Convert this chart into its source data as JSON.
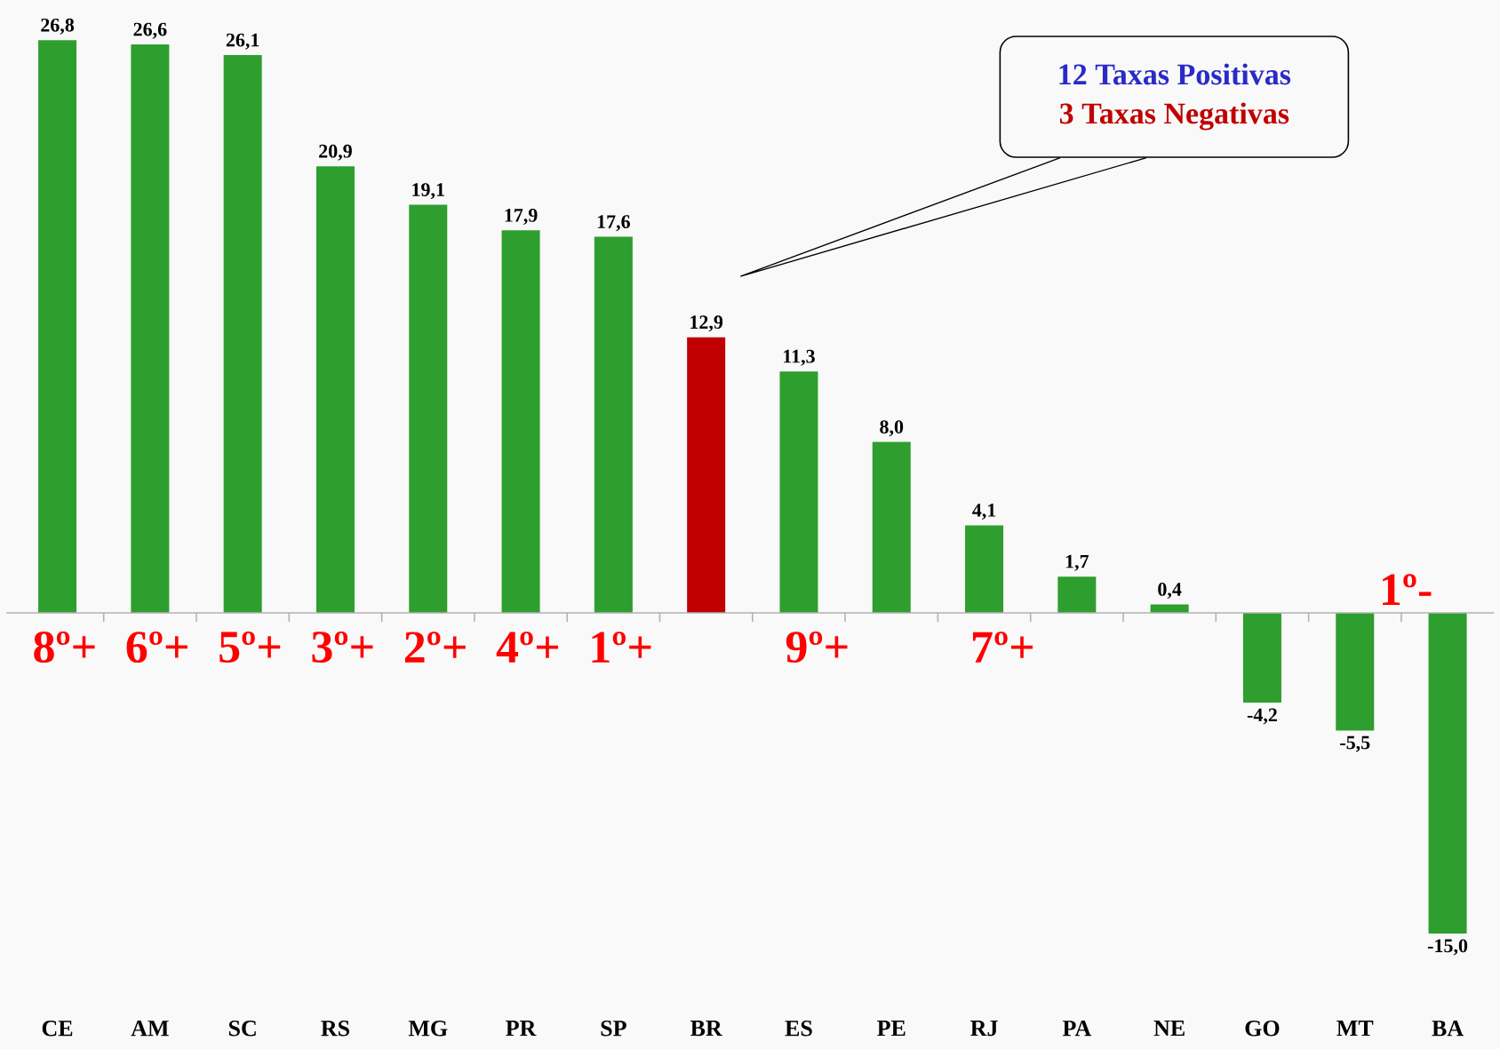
{
  "chart_data": {
    "type": "bar",
    "categories": [
      "CE",
      "AM",
      "SC",
      "RS",
      "MG",
      "PR",
      "SP",
      "BR",
      "ES",
      "PE",
      "RJ",
      "PA",
      "NE",
      "GO",
      "MT",
      "BA"
    ],
    "values": [
      26.8,
      26.6,
      26.1,
      20.9,
      19.1,
      17.9,
      17.6,
      12.9,
      11.3,
      8.0,
      4.1,
      1.7,
      0.4,
      -4.2,
      -5.5,
      -15.0
    ],
    "value_labels": [
      "26,8",
      "26,6",
      "26,1",
      "20,9",
      "19,1",
      "17,9",
      "17,6",
      "12,9",
      "11,3",
      "8,0",
      "4,1",
      "1,7",
      "0,4",
      "-4,2",
      "-5,5",
      "-15,0"
    ],
    "colors": [
      "#2e9e2e",
      "#2e9e2e",
      "#2e9e2e",
      "#2e9e2e",
      "#2e9e2e",
      "#2e9e2e",
      "#2e9e2e",
      "#c00000",
      "#2e9e2e",
      "#2e9e2e",
      "#2e9e2e",
      "#2e9e2e",
      "#2e9e2e",
      "#2e9e2e",
      "#2e9e2e",
      "#2e9e2e"
    ],
    "tick_labels": "x",
    "annotations": [
      "8º+",
      "6º+",
      "5º+",
      "3º+",
      "2º+",
      "4º+",
      "1º+",
      "9º+",
      "7º+",
      "1º-",
      "12 Taxas Positivas",
      "3 Taxas Negativas"
    ]
  }
}
